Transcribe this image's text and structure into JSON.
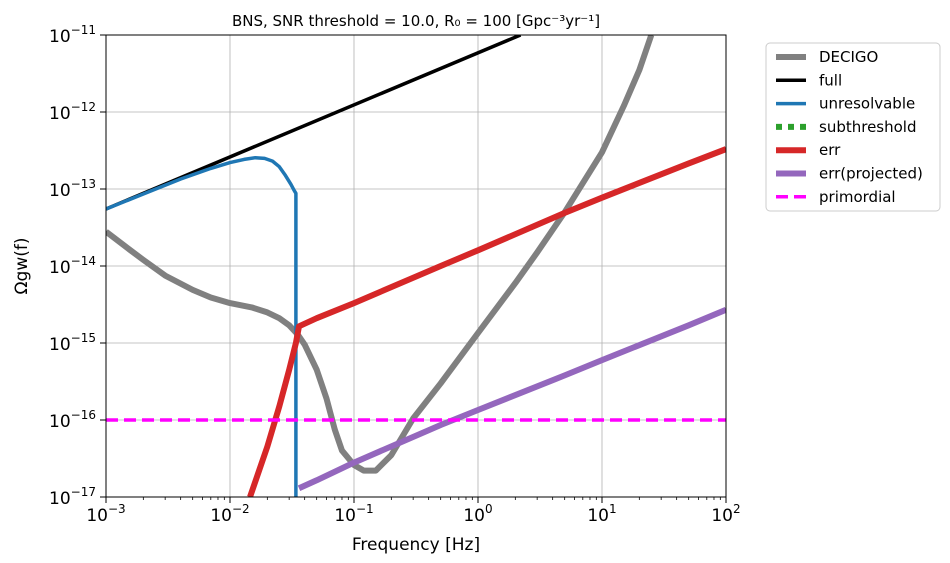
{
  "chart_data": {
    "type": "line",
    "title": "BNS, SNR threshold = 10.0, R₀ = 100 [Gpc⁻³yr⁻¹]",
    "xlabel": "Frequency [Hz]",
    "ylabel": "Ωgw(f)",
    "xscale": "log",
    "yscale": "log",
    "xlim": [
      0.001,
      100
    ],
    "ylim": [
      1e-17,
      1e-11
    ],
    "grid": true,
    "legend_position": "outside-top-right",
    "x_ticks": [
      {
        "value": 0.001,
        "base": "10",
        "exp": "−3"
      },
      {
        "value": 0.01,
        "base": "10",
        "exp": "−2"
      },
      {
        "value": 0.1,
        "base": "10",
        "exp": "−1"
      },
      {
        "value": 1,
        "base": "10",
        "exp": "0"
      },
      {
        "value": 10,
        "base": "10",
        "exp": "1"
      },
      {
        "value": 100,
        "base": "10",
        "exp": "2"
      }
    ],
    "y_ticks": [
      {
        "value": 1e-17,
        "base": "10",
        "exp": "−17"
      },
      {
        "value": 1e-16,
        "base": "10",
        "exp": "−16"
      },
      {
        "value": 1e-15,
        "base": "10",
        "exp": "−15"
      },
      {
        "value": 1e-14,
        "base": "10",
        "exp": "−14"
      },
      {
        "value": 1e-13,
        "base": "10",
        "exp": "−13"
      },
      {
        "value": 1e-12,
        "base": "10",
        "exp": "−12"
      },
      {
        "value": 1e-11,
        "base": "10",
        "exp": "−11"
      }
    ],
    "series": [
      {
        "name": "DECIGO",
        "color": "#808080",
        "style": "solid",
        "width": 6,
        "x": [
          0.001,
          0.0015,
          0.002,
          0.003,
          0.005,
          0.007,
          0.01,
          0.015,
          0.02,
          0.025,
          0.03,
          0.035,
          0.04,
          0.05,
          0.06,
          0.07,
          0.08,
          0.1,
          0.12,
          0.15,
          0.2,
          0.3,
          0.5,
          1,
          2,
          3,
          5,
          10,
          15,
          20,
          25
        ],
        "y": [
          2.8e-14,
          1.7e-14,
          1.2e-14,
          7.5e-15,
          4.9e-15,
          3.9e-15,
          3.3e-15,
          2.9e-15,
          2.5e-15,
          2.1e-15,
          1.7e-15,
          1.3e-15,
          9.5e-16,
          4.5e-16,
          1.9e-16,
          7.5e-17,
          4e-17,
          2.6e-17,
          2.2e-17,
          2.2e-17,
          3.5e-17,
          1.05e-16,
          3e-16,
          1.35e-15,
          6e-15,
          1.5e-14,
          5e-14,
          3e-13,
          1.2e-12,
          3.5e-12,
          1e-11
        ]
      },
      {
        "name": "full",
        "color": "#000000",
        "style": "solid",
        "width": 3.5,
        "x": [
          0.001,
          2.2
        ],
        "y": [
          5.5e-14,
          1e-11
        ]
      },
      {
        "name": "unresolvable",
        "color": "#1f77b4",
        "style": "solid",
        "width": 3.5,
        "x": [
          0.001,
          0.002,
          0.004,
          0.007,
          0.01,
          0.013,
          0.016,
          0.019,
          0.022,
          0.025,
          0.028,
          0.031,
          0.033,
          0.034,
          0.034,
          0.034
        ],
        "y": [
          5.5e-14,
          8.6e-14,
          1.35e-13,
          1.85e-13,
          2.2e-13,
          2.42e-13,
          2.55e-13,
          2.5e-13,
          2.3e-13,
          1.95e-13,
          1.5e-13,
          1.15e-13,
          9.5e-14,
          8.8e-14,
          1e-15,
          1e-17
        ]
      },
      {
        "name": "subthreshold",
        "color": "#2ca02c",
        "style": "dotted",
        "width": 6,
        "x": [],
        "y": []
      },
      {
        "name": "err",
        "color": "#d62728",
        "style": "solid",
        "width": 6,
        "x": [
          0.0145,
          0.02,
          0.025,
          0.03,
          0.034,
          0.036,
          0.05,
          0.1,
          0.5,
          1,
          5,
          10,
          50,
          100
        ],
        "y": [
          1e-17,
          4.5e-17,
          1.5e-16,
          4.5e-16,
          1e-15,
          1.65e-15,
          2.1e-15,
          3.3e-15,
          1e-14,
          1.6e-14,
          4.9e-14,
          7.7e-14,
          2.15e-13,
          3.3e-13
        ]
      },
      {
        "name": "err(projected)",
        "color": "#9467bd",
        "style": "solid",
        "width": 6,
        "x": [
          0.036,
          0.05,
          0.1,
          0.5,
          1,
          5,
          10,
          50,
          100
        ],
        "y": [
          1.3e-17,
          1.65e-17,
          2.8e-17,
          8.6e-17,
          1.35e-16,
          3.8e-16,
          6e-16,
          1.7e-15,
          2.7e-15
        ]
      },
      {
        "name": "primordial",
        "color": "#ff00ff",
        "style": "dashed",
        "width": 3.5,
        "x": [
          0.001,
          100
        ],
        "y": [
          1e-16,
          1e-16
        ]
      }
    ]
  }
}
